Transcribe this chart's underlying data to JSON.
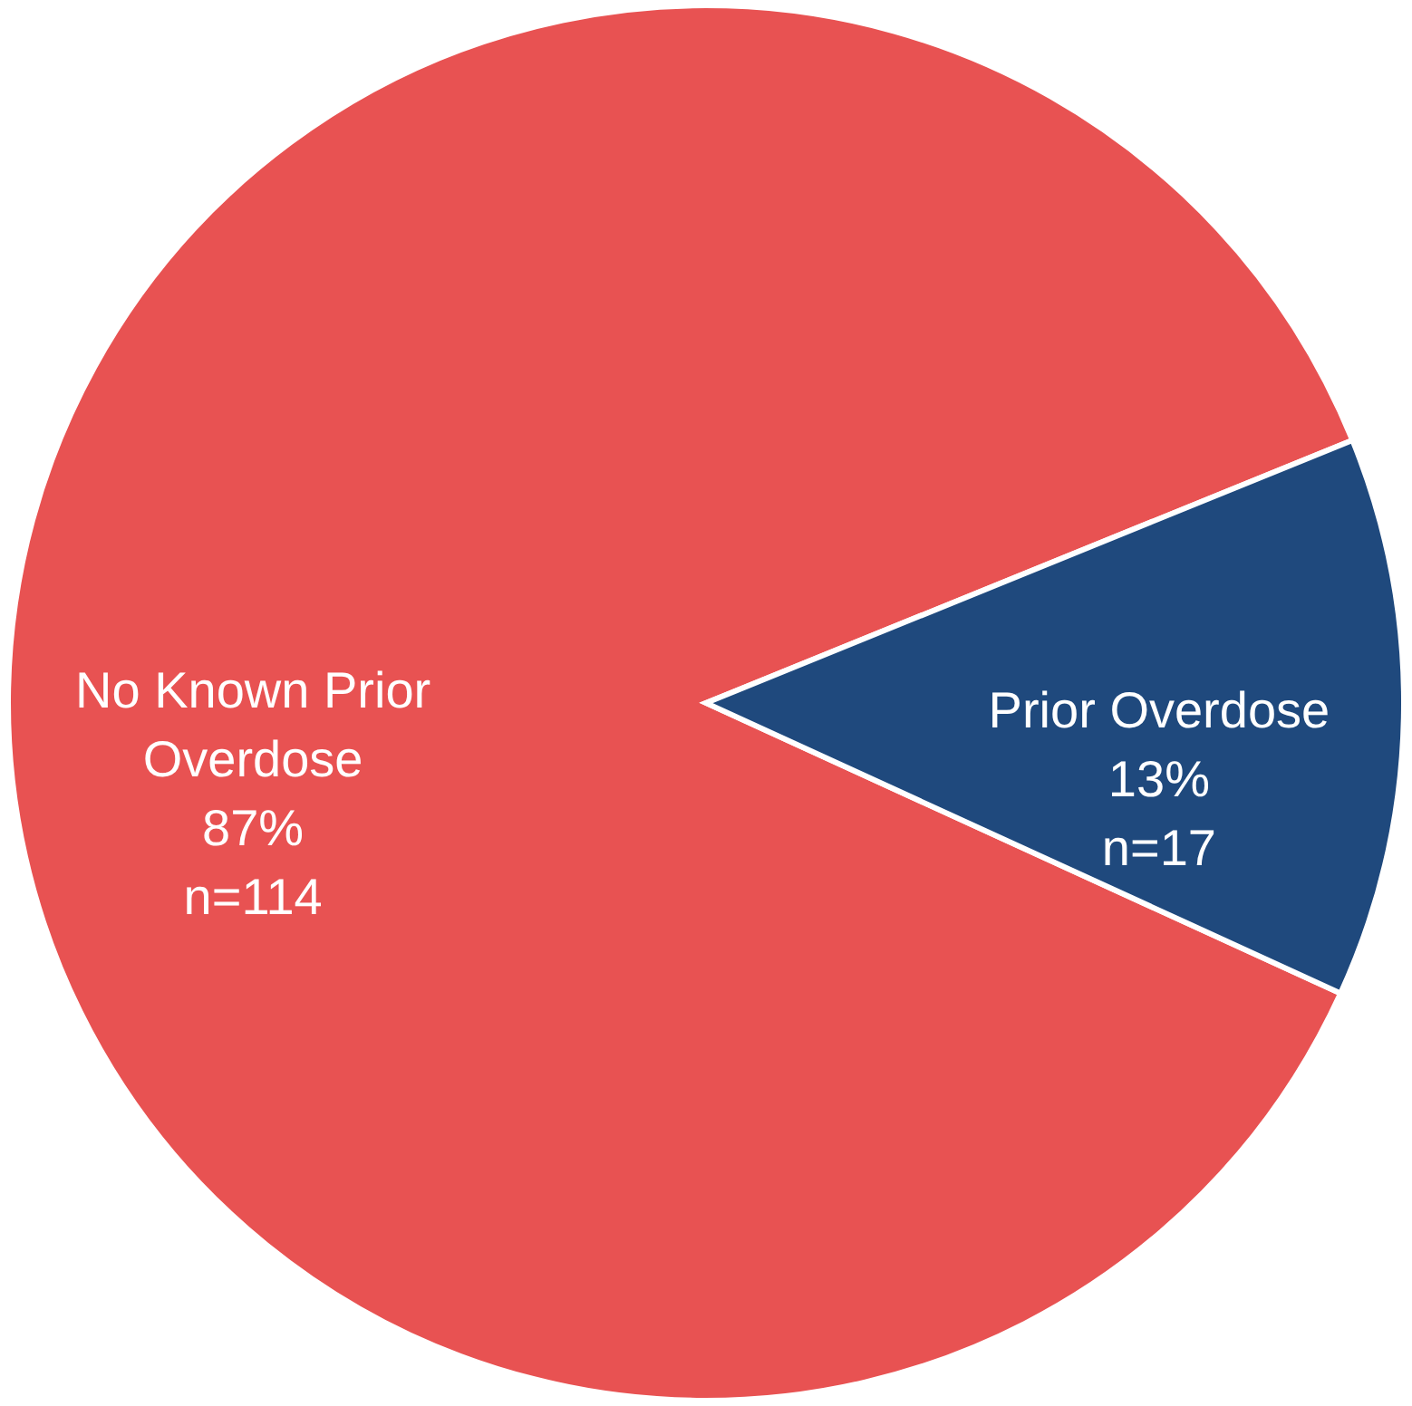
{
  "chart_data": {
    "type": "pie",
    "categories": [
      "No Known Prior Overdose",
      "Prior Overdose"
    ],
    "values": [
      114,
      17
    ],
    "value_labels": [
      "87%\nn=114",
      "13%\nn=17"
    ],
    "colors": [
      "#e85252",
      "#1f497d"
    ]
  }
}
